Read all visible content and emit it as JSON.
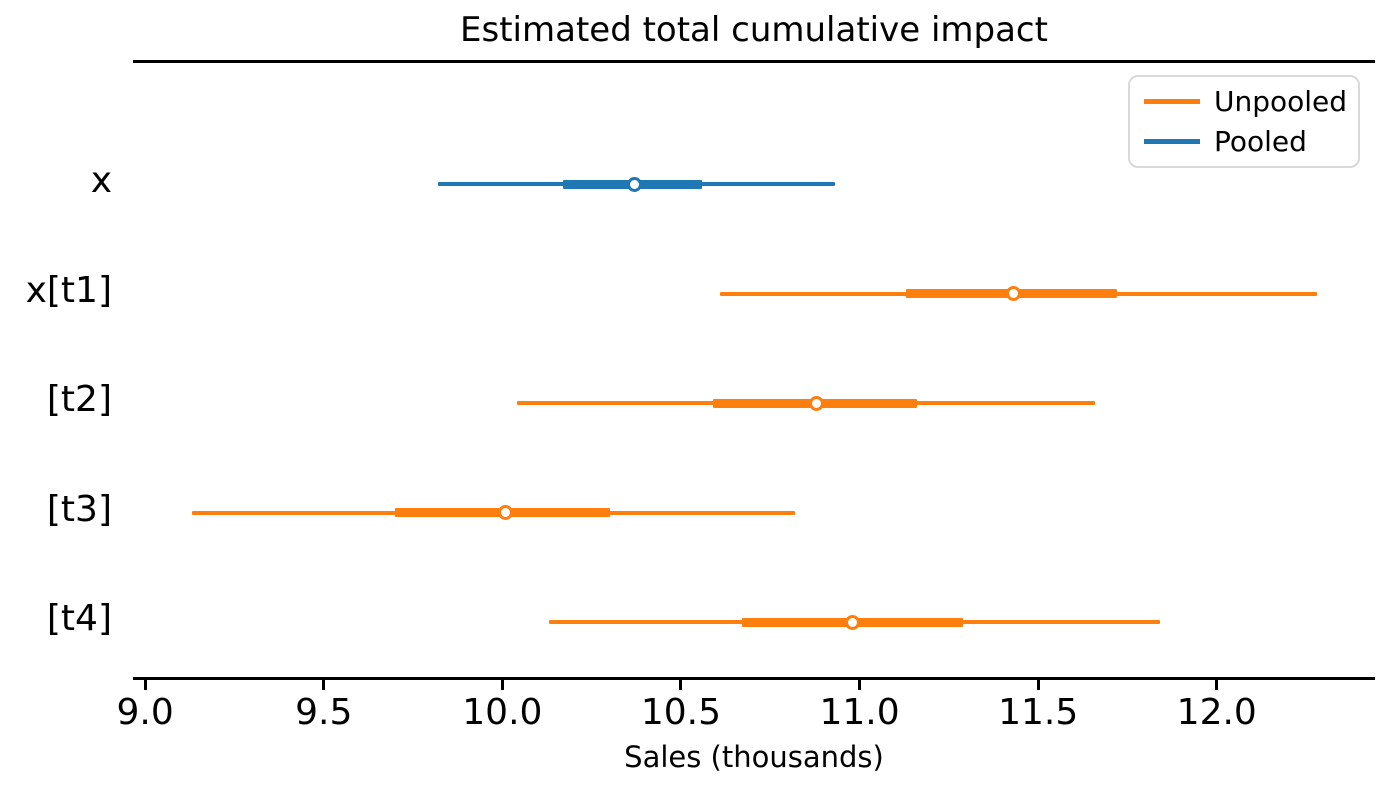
{
  "chart_data": {
    "type": "forest",
    "title": "Estimated total cumulative impact",
    "xlabel": "Sales (thousands)",
    "xlim": [
      8.966,
      12.443
    ],
    "xticks": [
      9.0,
      9.5,
      10.0,
      10.5,
      11.0,
      11.5,
      12.0
    ],
    "xtick_labels": [
      "9.0",
      "9.5",
      "10.0",
      "10.5",
      "11.0",
      "11.5",
      "12.0"
    ],
    "grid": false,
    "spines": {
      "top": true,
      "bottom": true,
      "left": false,
      "right": false
    },
    "rows": [
      {
        "label": "x",
        "series": "Pooled",
        "color": "#1f77b4",
        "mean": 10.37,
        "ci_inner": [
          10.17,
          10.56
        ],
        "ci_outer": [
          9.82,
          10.93
        ]
      },
      {
        "label": "x[t1]",
        "series": "Unpooled",
        "color": "#ff7f0e",
        "mean": 11.43,
        "ci_inner": [
          11.13,
          11.72
        ],
        "ci_outer": [
          10.61,
          12.28
        ]
      },
      {
        "label": "[t2]",
        "series": "Unpooled",
        "color": "#ff7f0e",
        "mean": 10.88,
        "ci_inner": [
          10.59,
          11.16
        ],
        "ci_outer": [
          10.04,
          11.66
        ]
      },
      {
        "label": "[t3]",
        "series": "Unpooled",
        "color": "#ff7f0e",
        "mean": 10.01,
        "ci_inner": [
          9.7,
          10.3
        ],
        "ci_outer": [
          9.13,
          10.82
        ]
      },
      {
        "label": "[t4]",
        "series": "Unpooled",
        "color": "#ff7f0e",
        "mean": 10.98,
        "ci_inner": [
          10.67,
          11.29
        ],
        "ci_outer": [
          10.13,
          11.84
        ]
      }
    ],
    "legend": {
      "position": "upper right",
      "entries": [
        {
          "label": "Unpooled",
          "color": "#ff7f0e"
        },
        {
          "label": "Pooled",
          "color": "#1f77b4"
        }
      ]
    }
  },
  "colors": {
    "unpooled": "#ff7f0e",
    "pooled": "#1f77b4",
    "spine": "#000000",
    "legend_border": "#d9d9d9",
    "background": "#ffffff"
  }
}
